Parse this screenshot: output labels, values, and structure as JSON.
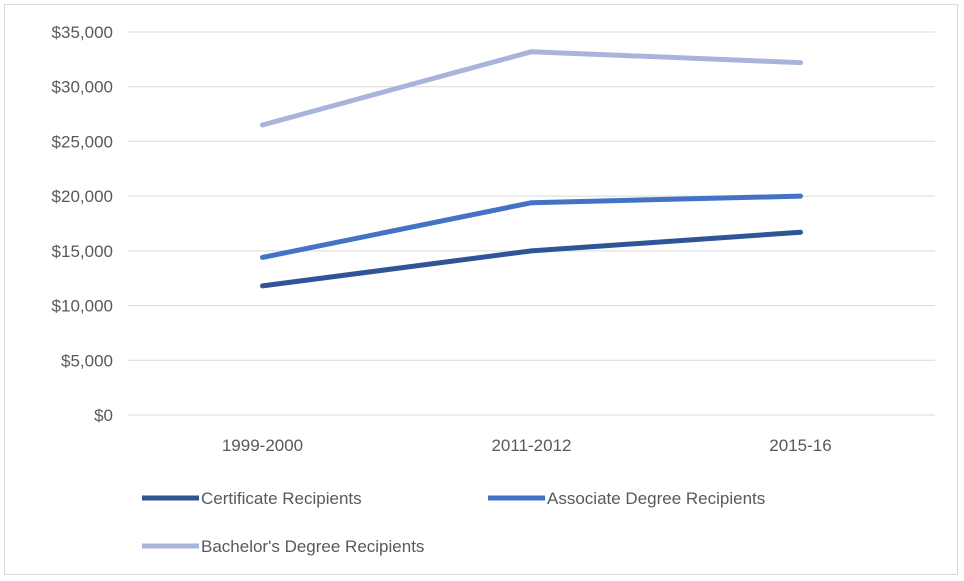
{
  "chart_data": {
    "type": "line",
    "title": "",
    "xlabel": "",
    "ylabel": "",
    "categories": [
      "1999-2000",
      "2011-2012",
      "2015-16"
    ],
    "ylim": [
      0,
      35000
    ],
    "yticks": [
      0,
      5000,
      10000,
      15000,
      20000,
      25000,
      30000,
      35000
    ],
    "ytick_labels": [
      "$0",
      "$5,000",
      "$10,000",
      "$15,000",
      "$20,000",
      "$25,000",
      "$30,000",
      "$35,000"
    ],
    "grid": true,
    "legend_position": "bottom",
    "series": [
      {
        "name": "Certificate Recipients",
        "values": [
          11800,
          15000,
          16700
        ],
        "color": "#2f5597"
      },
      {
        "name": "Associate Degree Recipients",
        "values": [
          14400,
          19400,
          20000
        ],
        "color": "#4472c4"
      },
      {
        "name": "Bachelor's Degree Recipients",
        "values": [
          26500,
          33200,
          32200
        ],
        "color": "#a9b4dc"
      }
    ]
  }
}
